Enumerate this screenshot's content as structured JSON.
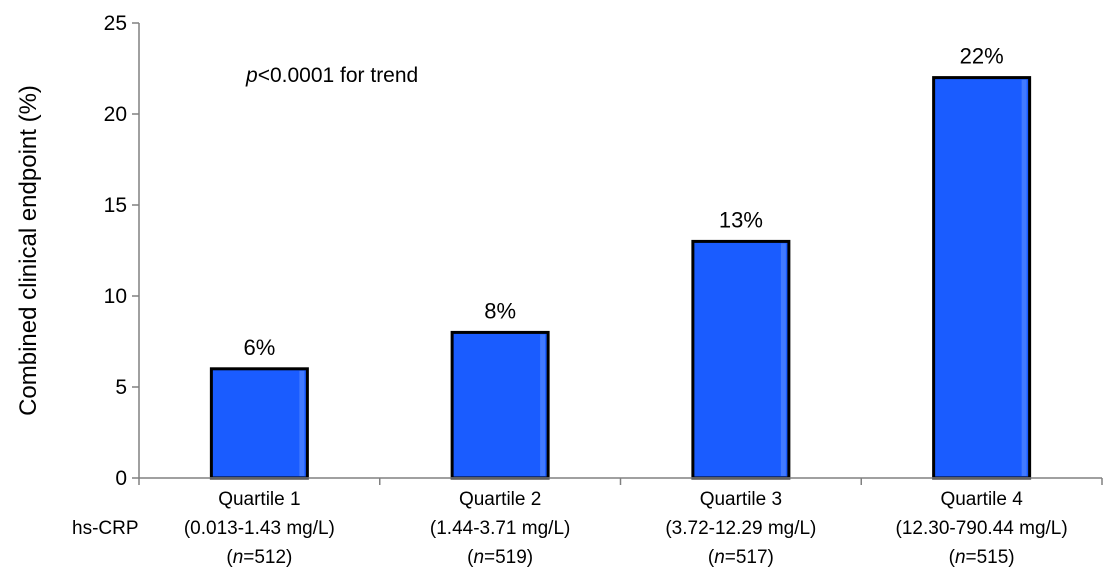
{
  "chart_data": {
    "type": "bar",
    "categories": [
      "Quartile 1",
      "Quartile 2",
      "Quartile 3",
      "Quartile 4"
    ],
    "category_ranges": [
      "(0.013-1.43 mg/L)",
      "(1.44-3.71 mg/L)",
      "(3.72-12.29 mg/L)",
      "(12.30-790.44 mg/L)"
    ],
    "category_n": [
      "512",
      "519",
      "517",
      "515"
    ],
    "n_prefix": "n",
    "n_suffix_sep": "=",
    "values": [
      6,
      8,
      13,
      22
    ],
    "data_labels": [
      "6%",
      "8%",
      "13%",
      "22%"
    ],
    "ylabel": "Combined clinical endpoint (%)",
    "xlabel": "",
    "x_group_label": "hs-CRP",
    "ylim": [
      0,
      25
    ],
    "yticks": [
      0,
      5,
      10,
      15,
      20,
      25
    ],
    "annotation": {
      "italic_part": "p",
      "rest": "<0.0001 for trend"
    },
    "grid": false,
    "legend": "none",
    "colors": {
      "bar_fill": "#1a5cff",
      "bar_highlight": "#5c8dff",
      "bar_stroke": "#000000",
      "axis": "#808080"
    }
  }
}
